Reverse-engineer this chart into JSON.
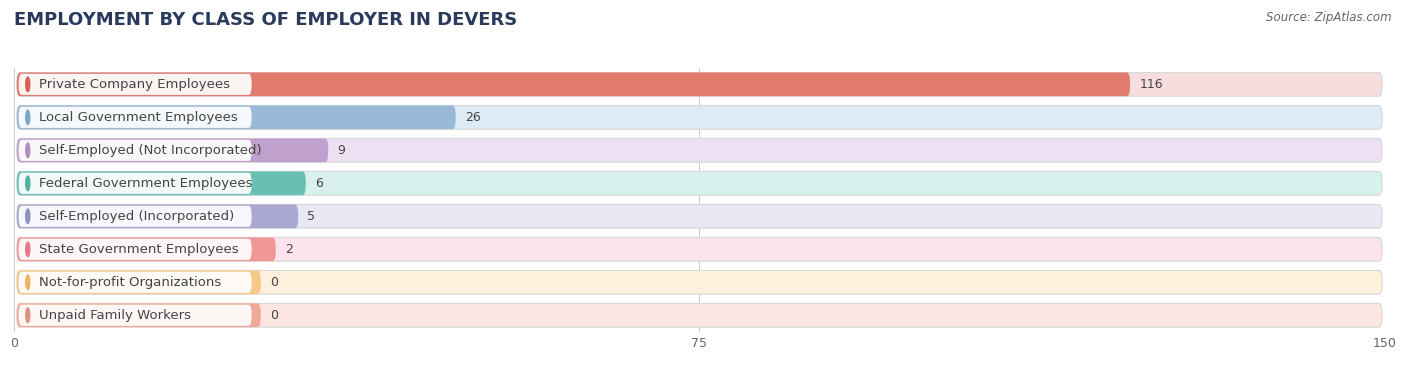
{
  "title": "EMPLOYMENT BY CLASS OF EMPLOYER IN DEVERS",
  "source": "Source: ZipAtlas.com",
  "categories": [
    "Private Company Employees",
    "Local Government Employees",
    "Self-Employed (Not Incorporated)",
    "Federal Government Employees",
    "Self-Employed (Incorporated)",
    "State Government Employees",
    "Not-for-profit Organizations",
    "Unpaid Family Workers"
  ],
  "values": [
    116,
    26,
    9,
    6,
    5,
    2,
    0,
    0
  ],
  "bar_colors": [
    "#e07b6e",
    "#9ab8d8",
    "#c0a0cc",
    "#68c0b4",
    "#a8a8d0",
    "#f09898",
    "#f8c888",
    "#f0a898"
  ],
  "bar_bg_colors": [
    "#f5dedd",
    "#deeaf6",
    "#ede0f2",
    "#d8f0ee",
    "#e8e8f4",
    "#fce4ec",
    "#fdf0dc",
    "#fce6e2"
  ],
  "circle_colors": [
    "#d96055",
    "#7aaac8",
    "#b090be",
    "#50b0a4",
    "#9090c0",
    "#e87888",
    "#f0b060",
    "#e09080"
  ],
  "xlim": [
    0,
    150
  ],
  "xticks": [
    0,
    75,
    150
  ],
  "title_fontsize": 13,
  "label_fontsize": 9.5,
  "value_fontsize": 9,
  "background_color": "#ffffff",
  "row_bg_color": "#f0f0f0"
}
